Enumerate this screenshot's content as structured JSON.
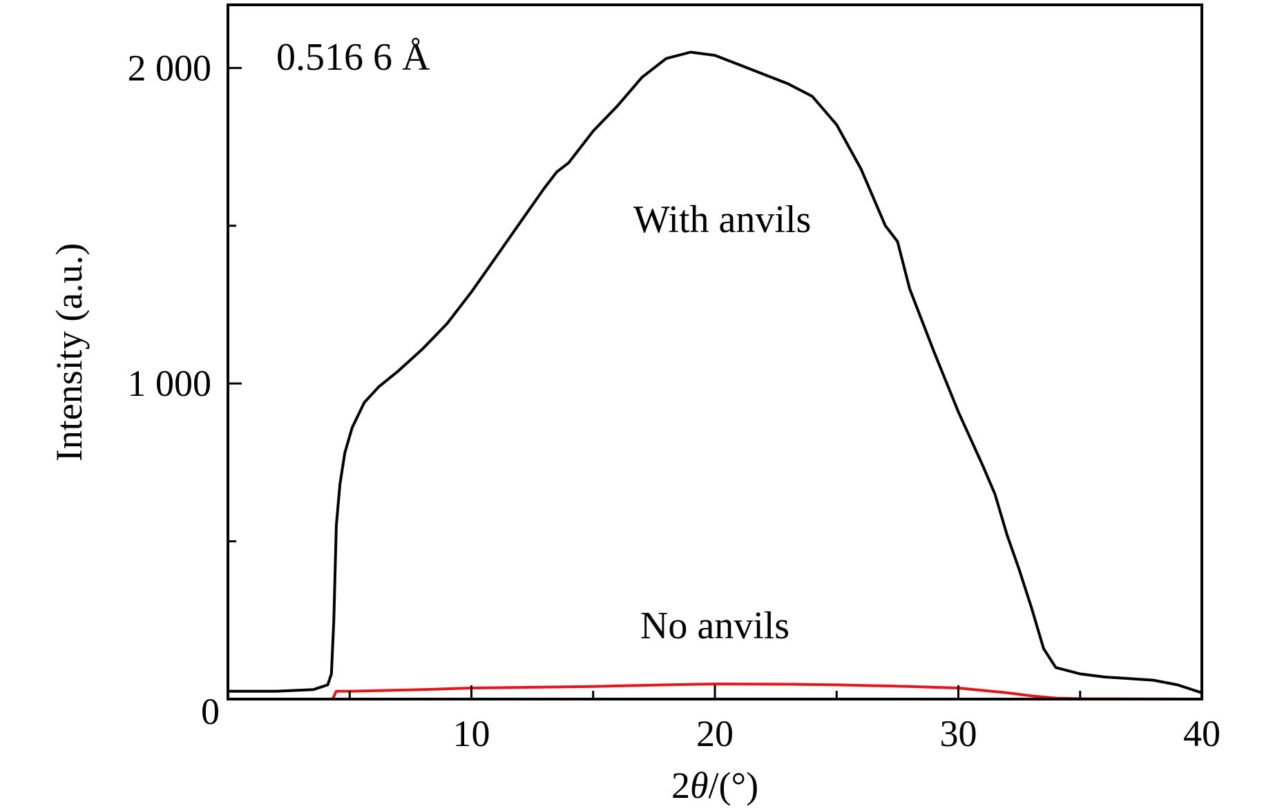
{
  "chart_data": {
    "type": "line",
    "annotation": "0.516 6 Å",
    "xlabel": {
      "prefix": "2",
      "symbol": "θ",
      "suffix": "/(°)"
    },
    "ylabel": "Intensity (a.u.)",
    "xlim": [
      0,
      40
    ],
    "ylim": [
      0,
      2200
    ],
    "xticks": [
      10,
      20,
      30,
      40
    ],
    "xminor_ticks": [
      5,
      15,
      25,
      35
    ],
    "yticks": [
      {
        "value": 0,
        "label": "0"
      },
      {
        "value": 1000,
        "label": "1 000"
      },
      {
        "value": 2000,
        "label": "2 000"
      }
    ],
    "yminor_ticks": [
      500,
      1500
    ],
    "grid": false,
    "series": [
      {
        "name": "With anvils",
        "color": "#000000",
        "label_at": [
          20.3,
          1480
        ],
        "points": [
          [
            0,
            25
          ],
          [
            2,
            25
          ],
          [
            3.5,
            30
          ],
          [
            4.1,
            45
          ],
          [
            4.25,
            80
          ],
          [
            4.35,
            250
          ],
          [
            4.45,
            550
          ],
          [
            4.6,
            680
          ],
          [
            4.8,
            780
          ],
          [
            5.1,
            860
          ],
          [
            5.6,
            940
          ],
          [
            6.2,
            990
          ],
          [
            7,
            1040
          ],
          [
            8,
            1110
          ],
          [
            9,
            1190
          ],
          [
            10,
            1290
          ],
          [
            11,
            1400
          ],
          [
            12,
            1510
          ],
          [
            13,
            1620
          ],
          [
            13.5,
            1670
          ],
          [
            14,
            1700
          ],
          [
            15,
            1800
          ],
          [
            16,
            1880
          ],
          [
            17,
            1970
          ],
          [
            18,
            2030
          ],
          [
            19,
            2050
          ],
          [
            20,
            2040
          ],
          [
            21,
            2010
          ],
          [
            22,
            1980
          ],
          [
            23,
            1950
          ],
          [
            24,
            1910
          ],
          [
            25,
            1820
          ],
          [
            26,
            1680
          ],
          [
            27,
            1500
          ],
          [
            27.5,
            1450
          ],
          [
            28,
            1300
          ],
          [
            29,
            1100
          ],
          [
            30,
            910
          ],
          [
            31,
            740
          ],
          [
            31.5,
            650
          ],
          [
            32,
            520
          ],
          [
            32.5,
            410
          ],
          [
            33,
            290
          ],
          [
            33.5,
            160
          ],
          [
            34,
            100
          ],
          [
            35,
            80
          ],
          [
            36,
            70
          ],
          [
            37,
            65
          ],
          [
            38,
            60
          ],
          [
            39,
            45
          ],
          [
            40,
            20
          ]
        ]
      },
      {
        "name": "No anvils",
        "color": "#e8141b",
        "label_at": [
          20,
          193
        ],
        "points": [
          [
            4.3,
            0
          ],
          [
            4.45,
            25
          ],
          [
            5,
            25
          ],
          [
            8,
            30
          ],
          [
            10,
            35
          ],
          [
            15,
            40
          ],
          [
            18,
            45
          ],
          [
            20,
            48
          ],
          [
            23,
            47
          ],
          [
            25,
            45
          ],
          [
            28,
            40
          ],
          [
            30,
            35
          ],
          [
            32,
            20
          ],
          [
            33,
            10
          ],
          [
            34,
            3
          ],
          [
            35,
            1
          ],
          [
            40,
            0
          ]
        ]
      }
    ]
  }
}
